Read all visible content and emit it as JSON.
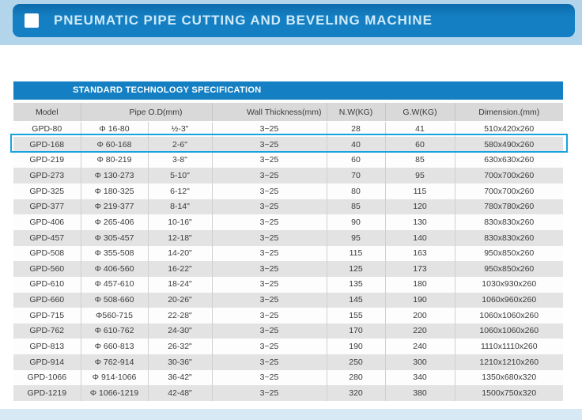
{
  "header": {
    "title": "PNEUMATIC PIPE CUTTING AND BEVELING MACHINE",
    "square_icon": "white-square-bullet"
  },
  "colors": {
    "accent_blue": "#1480c3",
    "highlight_blue": "#18a3df",
    "top_band_blue": "#b3d5ec",
    "bottom_band_blue": "#d7e9f5",
    "header_row_gray": "#d9d9d9",
    "alt_row_gray": "#e3e3e3"
  },
  "spec_table": {
    "section_title": "STANDARD TECHNOLOGY SPECIFICATION",
    "columns": [
      "Model",
      "Pipe O.D(mm)",
      "Wall Thickness(mm)",
      "N.W(KG)",
      "G.W(KG)",
      "Dimension.(mm)"
    ],
    "highlighted_model": "GPD-168",
    "highlight_row_index": 1,
    "rows": [
      [
        "GPD-80",
        "Φ 16-80",
        "½-3\"",
        "3~25",
        "28",
        "41",
        "510x420x260"
      ],
      [
        "GPD-168",
        "Φ 60-168",
        "2-6\"",
        "3~25",
        "40",
        "60",
        "580x490x260"
      ],
      [
        "GPD-219",
        "Φ 80-219",
        "3-8\"",
        "3~25",
        "60",
        "85",
        "630x630x260"
      ],
      [
        "GPD-273",
        "Φ 130-273",
        "5-10\"",
        "3~25",
        "70",
        "95",
        "700x700x260"
      ],
      [
        "GPD-325",
        "Φ 180-325",
        "6-12\"",
        "3~25",
        "80",
        "115",
        "700x700x260"
      ],
      [
        "GPD-377",
        "Φ 219-377",
        "8-14\"",
        "3~25",
        "85",
        "120",
        "780x780x260"
      ],
      [
        "GPD-406",
        "Φ 265-406",
        "10-16\"",
        "3~25",
        "90",
        "130",
        "830x830x260"
      ],
      [
        "GPD-457",
        "Φ 305-457",
        "12-18\"",
        "3~25",
        "95",
        "140",
        "830x830x260"
      ],
      [
        "GPD-508",
        "Φ 355-508",
        "14-20\"",
        "3~25",
        "115",
        "163",
        "950x850x260"
      ],
      [
        "GPD-560",
        "Φ 406-560",
        "16-22\"",
        "3~25",
        "125",
        "173",
        "950x850x260"
      ],
      [
        "GPD-610",
        "Φ 457-610",
        "18-24\"",
        "3~25",
        "135",
        "180",
        "1030x930x260"
      ],
      [
        "GPD-660",
        "Φ 508-660",
        "20-26\"",
        "3~25",
        "145",
        "190",
        "1060x960x260"
      ],
      [
        "GPD-715",
        "Φ560-715",
        "22-28\"",
        "3~25",
        "155",
        "200",
        "1060x1060x260"
      ],
      [
        "GPD-762",
        "Φ 610-762",
        "24-30\"",
        "3~25",
        "170",
        "220",
        "1060x1060x260"
      ],
      [
        "GPD-813",
        "Φ 660-813",
        "26-32\"",
        "3~25",
        "190",
        "240",
        "1110x1110x260"
      ],
      [
        "GPD-914",
        "Φ 762-914",
        "30-36\"",
        "3~25",
        "250",
        "300",
        "1210x1210x260"
      ],
      [
        "GPD-1066",
        "Φ 914-1066",
        "36-42\"",
        "3~25",
        "280",
        "340",
        "1350x680x320"
      ],
      [
        "GPD-1219",
        "Φ 1066-1219",
        "42-48\"",
        "3~25",
        "320",
        "380",
        "1500x750x320"
      ]
    ]
  }
}
